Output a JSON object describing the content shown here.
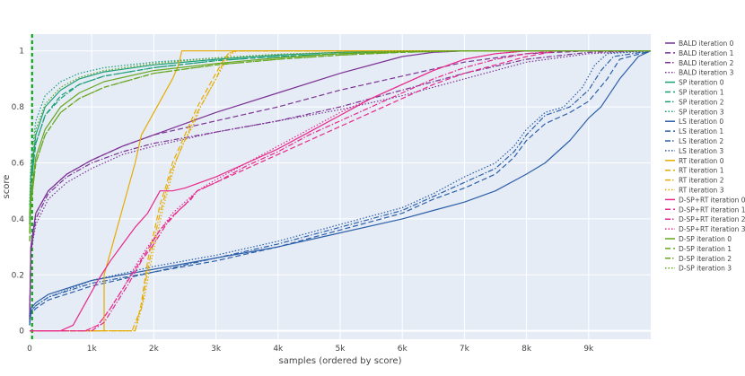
{
  "chart_data": {
    "type": "line",
    "title": "",
    "xlabel": "samples (ordered by score)",
    "ylabel": "score",
    "xlim": [
      0,
      10000
    ],
    "ylim": [
      -0.03,
      1.06
    ],
    "grid": true,
    "legend_position": "right",
    "x_ticks": [
      {
        "value": 0,
        "label": "0"
      },
      {
        "value": 1000,
        "label": "1k"
      },
      {
        "value": 2000,
        "label": "2k"
      },
      {
        "value": 3000,
        "label": "3k"
      },
      {
        "value": 4000,
        "label": "4k"
      },
      {
        "value": 5000,
        "label": "5k"
      },
      {
        "value": 6000,
        "label": "6k"
      },
      {
        "value": 7000,
        "label": "7k"
      },
      {
        "value": 8000,
        "label": "8k"
      },
      {
        "value": 9000,
        "label": "9k"
      }
    ],
    "y_ticks": [
      {
        "value": 0,
        "label": "0"
      },
      {
        "value": 0.2,
        "label": "0.2"
      },
      {
        "value": 0.4,
        "label": "0.4"
      },
      {
        "value": 0.6,
        "label": "0.6"
      },
      {
        "value": 0.8,
        "label": "0.8"
      },
      {
        "value": 1,
        "label": "1"
      }
    ],
    "vertical_marker": {
      "x": 40,
      "color": "#00a000"
    },
    "series": [
      {
        "name": "BALD iteration 0",
        "color": "#7b3294",
        "dash": "solid",
        "x": [
          0,
          20,
          100,
          300,
          600,
          1000,
          1500,
          2000,
          3000,
          4000,
          5000,
          6000,
          6500,
          7000,
          8000,
          9000,
          10000
        ],
        "y": [
          0.05,
          0.3,
          0.42,
          0.5,
          0.56,
          0.61,
          0.66,
          0.7,
          0.78,
          0.85,
          0.92,
          0.98,
          0.995,
          1,
          1,
          1,
          1
        ]
      },
      {
        "name": "BALD iteration 1",
        "color": "#7b3294",
        "dash": "dash",
        "x": [
          0,
          20,
          100,
          300,
          600,
          1000,
          1500,
          2000,
          3000,
          4000,
          5000,
          6000,
          7000,
          8000,
          9000,
          10000
        ],
        "y": [
          0.05,
          0.3,
          0.42,
          0.5,
          0.56,
          0.61,
          0.66,
          0.7,
          0.75,
          0.8,
          0.86,
          0.91,
          0.96,
          0.99,
          1,
          1
        ]
      },
      {
        "name": "BALD iteration 2",
        "color": "#7b3294",
        "dash": "dashdot",
        "x": [
          0,
          20,
          100,
          300,
          600,
          1000,
          1500,
          2000,
          3000,
          4000,
          5000,
          6000,
          7000,
          8000,
          9000,
          10000
        ],
        "y": [
          0.04,
          0.28,
          0.4,
          0.49,
          0.55,
          0.6,
          0.64,
          0.67,
          0.71,
          0.75,
          0.8,
          0.86,
          0.92,
          0.97,
          0.995,
          1
        ]
      },
      {
        "name": "BALD iteration 3",
        "color": "#7b3294",
        "dash": "dot",
        "x": [
          0,
          20,
          100,
          300,
          600,
          1000,
          1500,
          2000,
          3000,
          4000,
          5000,
          6000,
          7000,
          8000,
          9000,
          10000
        ],
        "y": [
          0.04,
          0.28,
          0.38,
          0.47,
          0.53,
          0.58,
          0.63,
          0.66,
          0.71,
          0.75,
          0.79,
          0.84,
          0.9,
          0.96,
          0.99,
          1
        ]
      },
      {
        "name": "SP iteration 0",
        "color": "#1b9e77",
        "dash": "solid",
        "x": [
          0,
          20,
          100,
          250,
          500,
          800,
          1200,
          2000,
          3000,
          4000,
          5000,
          6000,
          7000,
          10000
        ],
        "y": [
          0.4,
          0.55,
          0.7,
          0.8,
          0.86,
          0.9,
          0.925,
          0.95,
          0.97,
          0.985,
          0.995,
          1,
          1,
          1
        ]
      },
      {
        "name": "SP iteration 1",
        "color": "#1b9e77",
        "dash": "dash",
        "x": [
          0,
          20,
          100,
          250,
          500,
          800,
          1200,
          2000,
          3000,
          4000,
          5000,
          6000,
          7000,
          10000
        ],
        "y": [
          0.38,
          0.52,
          0.67,
          0.77,
          0.84,
          0.88,
          0.91,
          0.94,
          0.965,
          0.98,
          0.99,
          0.998,
          1,
          1
        ]
      },
      {
        "name": "SP iteration 2",
        "color": "#1b9e77",
        "dash": "dashdot",
        "x": [
          0,
          20,
          100,
          250,
          500,
          800,
          1200,
          2000,
          3000,
          4000,
          5000,
          6000,
          7000,
          10000
        ],
        "y": [
          0.38,
          0.52,
          0.67,
          0.77,
          0.83,
          0.88,
          0.91,
          0.94,
          0.965,
          0.98,
          0.99,
          0.998,
          1,
          1
        ]
      },
      {
        "name": "SP iteration 3",
        "color": "#1b9e77",
        "dash": "dot",
        "x": [
          0,
          20,
          100,
          250,
          500,
          800,
          1200,
          2000,
          3000,
          4000,
          5000,
          6000,
          7000,
          10000
        ],
        "y": [
          0.45,
          0.6,
          0.75,
          0.84,
          0.89,
          0.92,
          0.94,
          0.96,
          0.975,
          0.988,
          0.995,
          1,
          1,
          1
        ]
      },
      {
        "name": "LS iteration 0",
        "color": "#2c5fa8",
        "dash": "solid",
        "x": [
          0,
          20,
          100,
          300,
          1000,
          2000,
          3000,
          4000,
          5000,
          6000,
          6500,
          7000,
          7500,
          8000,
          8300,
          8700,
          9000,
          9200,
          9500,
          9800,
          10000
        ],
        "y": [
          0.03,
          0.08,
          0.1,
          0.13,
          0.18,
          0.22,
          0.26,
          0.3,
          0.35,
          0.4,
          0.43,
          0.46,
          0.5,
          0.56,
          0.6,
          0.68,
          0.76,
          0.8,
          0.9,
          0.98,
          1
        ]
      },
      {
        "name": "LS iteration 1",
        "color": "#2c5fa8",
        "dash": "dash",
        "x": [
          0,
          20,
          100,
          300,
          1000,
          2000,
          3000,
          4000,
          5000,
          6000,
          6500,
          7000,
          7500,
          7800,
          8000,
          8300,
          8700,
          9000,
          9300,
          9500,
          10000
        ],
        "y": [
          0.02,
          0.06,
          0.08,
          0.11,
          0.16,
          0.21,
          0.25,
          0.3,
          0.36,
          0.42,
          0.47,
          0.51,
          0.56,
          0.62,
          0.68,
          0.74,
          0.78,
          0.82,
          0.9,
          0.97,
          1
        ]
      },
      {
        "name": "LS iteration 2",
        "color": "#2c5fa8",
        "dash": "dashdot",
        "x": [
          0,
          20,
          100,
          300,
          1000,
          2000,
          3000,
          4000,
          5000,
          6000,
          6500,
          7000,
          7500,
          7800,
          8000,
          8300,
          8700,
          9000,
          9200,
          9400,
          10000
        ],
        "y": [
          0.02,
          0.07,
          0.09,
          0.12,
          0.17,
          0.21,
          0.26,
          0.31,
          0.37,
          0.43,
          0.48,
          0.53,
          0.58,
          0.64,
          0.7,
          0.77,
          0.8,
          0.86,
          0.93,
          0.98,
          1
        ]
      },
      {
        "name": "LS iteration 3",
        "color": "#2c5fa8",
        "dash": "dot",
        "x": [
          0,
          20,
          100,
          300,
          1000,
          2000,
          3000,
          4000,
          5000,
          6000,
          6500,
          7000,
          7500,
          7800,
          8000,
          8300,
          8600,
          8900,
          9100,
          9300,
          10000
        ],
        "y": [
          0.02,
          0.07,
          0.09,
          0.12,
          0.18,
          0.23,
          0.27,
          0.32,
          0.38,
          0.44,
          0.49,
          0.55,
          0.6,
          0.66,
          0.72,
          0.78,
          0.8,
          0.87,
          0.95,
          0.99,
          1
        ]
      },
      {
        "name": "RT iteration 0",
        "color": "#e6ab02",
        "dash": "solid",
        "x": [
          0,
          1200,
          1200,
          1300,
          1400,
          1500,
          1600,
          1700,
          1750,
          1800,
          1900,
          2000,
          2100,
          2200,
          2300,
          2400,
          2450,
          2500,
          10000
        ],
        "y": [
          0,
          0,
          0.2,
          0.28,
          0.36,
          0.44,
          0.52,
          0.6,
          0.65,
          0.7,
          0.74,
          0.78,
          0.82,
          0.86,
          0.9,
          0.95,
          1,
          1,
          1
        ]
      },
      {
        "name": "RT iteration 1",
        "color": "#e6ab02",
        "dash": "dash",
        "x": [
          0,
          1700,
          1750,
          1800,
          1900,
          2000,
          2100,
          2200,
          2300,
          2400,
          2500,
          2600,
          2700,
          2800,
          2900,
          3000,
          3100,
          3200,
          3300,
          10000
        ],
        "y": [
          0,
          0,
          0.05,
          0.1,
          0.25,
          0.35,
          0.45,
          0.52,
          0.6,
          0.65,
          0.7,
          0.75,
          0.8,
          0.84,
          0.88,
          0.92,
          0.96,
          0.99,
          1,
          1
        ]
      },
      {
        "name": "RT iteration 2",
        "color": "#e6ab02",
        "dash": "dashdot",
        "x": [
          0,
          1650,
          1700,
          1800,
          1900,
          2000,
          2100,
          2200,
          2300,
          2400,
          2500,
          2600,
          2700,
          2800,
          2900,
          3000,
          3100,
          3200,
          3300,
          10000
        ],
        "y": [
          0,
          0,
          0.03,
          0.08,
          0.22,
          0.32,
          0.42,
          0.5,
          0.58,
          0.63,
          0.68,
          0.73,
          0.78,
          0.82,
          0.86,
          0.9,
          0.95,
          0.99,
          1,
          1
        ]
      },
      {
        "name": "RT iteration 3",
        "color": "#e6ab02",
        "dash": "dot",
        "x": [
          0,
          1700,
          1750,
          1850,
          1950,
          2050,
          2150,
          2250,
          2350,
          2450,
          2550,
          2650,
          2750,
          2850,
          2950,
          3050,
          3150,
          3250,
          3350,
          10000
        ],
        "y": [
          0,
          0,
          0.04,
          0.12,
          0.24,
          0.34,
          0.44,
          0.52,
          0.6,
          0.66,
          0.7,
          0.74,
          0.8,
          0.84,
          0.88,
          0.92,
          0.96,
          0.99,
          1,
          1
        ]
      },
      {
        "name": "D-SP+RT iteration 0",
        "color": "#e7298a",
        "dash": "solid",
        "x": [
          0,
          500,
          700,
          900,
          1100,
          1300,
          1500,
          1700,
          1900,
          2000,
          2100,
          2200,
          2300,
          2500,
          3000,
          3500,
          4000,
          4500,
          5000,
          5500,
          6000,
          6500,
          7000,
          7500,
          8000,
          10000
        ],
        "y": [
          0,
          0,
          0.02,
          0.1,
          0.18,
          0.25,
          0.31,
          0.37,
          0.42,
          0.46,
          0.5,
          0.5,
          0.5,
          0.51,
          0.55,
          0.6,
          0.65,
          0.71,
          0.77,
          0.83,
          0.88,
          0.93,
          0.97,
          0.99,
          1,
          1
        ]
      },
      {
        "name": "D-SP+RT iteration 1",
        "color": "#e7298a",
        "dash": "dash",
        "x": [
          0,
          900,
          1100,
          1300,
          1500,
          1700,
          1900,
          2100,
          2300,
          2500,
          2700,
          3000,
          3500,
          4000,
          4500,
          5000,
          5500,
          6000,
          6500,
          7000,
          7500,
          8000,
          8500,
          10000
        ],
        "y": [
          0,
          0,
          0.02,
          0.08,
          0.15,
          0.22,
          0.29,
          0.36,
          0.41,
          0.45,
          0.5,
          0.53,
          0.58,
          0.63,
          0.68,
          0.73,
          0.78,
          0.83,
          0.88,
          0.92,
          0.95,
          0.98,
          1,
          1
        ]
      },
      {
        "name": "D-SP+RT iteration 2",
        "color": "#e7298a",
        "dash": "dashdot",
        "x": [
          0,
          1000,
          1200,
          1400,
          1600,
          1800,
          2000,
          2200,
          2400,
          2600,
          2700,
          3000,
          3500,
          4000,
          4500,
          5000,
          5500,
          6000,
          6500,
          7000,
          7500,
          8000,
          8500,
          10000
        ],
        "y": [
          0,
          0,
          0.03,
          0.1,
          0.17,
          0.25,
          0.31,
          0.38,
          0.43,
          0.47,
          0.5,
          0.53,
          0.59,
          0.64,
          0.7,
          0.75,
          0.8,
          0.85,
          0.9,
          0.94,
          0.97,
          0.99,
          1,
          1
        ]
      },
      {
        "name": "D-SP+RT iteration 3",
        "color": "#e7298a",
        "dash": "dot",
        "x": [
          0,
          900,
          1100,
          1300,
          1500,
          1700,
          1900,
          2100,
          2300,
          2500,
          2700,
          3000,
          3500,
          4000,
          4500,
          5000,
          5500,
          6000,
          6500,
          7000,
          7500,
          8000,
          10000
        ],
        "y": [
          0,
          0,
          0.02,
          0.08,
          0.15,
          0.23,
          0.3,
          0.36,
          0.42,
          0.46,
          0.5,
          0.54,
          0.6,
          0.66,
          0.72,
          0.78,
          0.83,
          0.88,
          0.93,
          0.97,
          0.99,
          1,
          1
        ]
      },
      {
        "name": "D-SP iteration 0",
        "color": "#66a61e",
        "dash": "solid",
        "x": [
          0,
          20,
          100,
          250,
          500,
          800,
          1200,
          2000,
          3000,
          4000,
          5000,
          6000,
          7000,
          8000,
          10000
        ],
        "y": [
          0.35,
          0.48,
          0.62,
          0.72,
          0.8,
          0.85,
          0.89,
          0.93,
          0.955,
          0.975,
          0.99,
          0.997,
          1,
          1,
          1
        ]
      },
      {
        "name": "D-SP iteration 1",
        "color": "#66a61e",
        "dash": "dash",
        "x": [
          0,
          20,
          100,
          250,
          500,
          800,
          1200,
          2000,
          3000,
          4000,
          5000,
          6000,
          7000,
          8000,
          10000
        ],
        "y": [
          0.32,
          0.45,
          0.6,
          0.7,
          0.78,
          0.83,
          0.87,
          0.92,
          0.95,
          0.97,
          0.985,
          0.995,
          1,
          1,
          1
        ]
      },
      {
        "name": "D-SP iteration 2",
        "color": "#66a61e",
        "dash": "dashdot",
        "x": [
          0,
          20,
          100,
          250,
          500,
          800,
          1200,
          2000,
          3000,
          4000,
          5000,
          6000,
          7000,
          8000,
          10000
        ],
        "y": [
          0.32,
          0.45,
          0.6,
          0.7,
          0.78,
          0.83,
          0.87,
          0.92,
          0.95,
          0.97,
          0.985,
          0.995,
          1,
          1,
          1
        ]
      },
      {
        "name": "D-SP iteration 3",
        "color": "#66a61e",
        "dash": "dot",
        "x": [
          0,
          20,
          100,
          250,
          500,
          800,
          1200,
          2000,
          3000,
          4000,
          5000,
          6000,
          7000,
          8000,
          10000
        ],
        "y": [
          0.42,
          0.57,
          0.72,
          0.81,
          0.87,
          0.905,
          0.93,
          0.955,
          0.975,
          0.988,
          0.995,
          1,
          1,
          1,
          1
        ]
      }
    ]
  }
}
